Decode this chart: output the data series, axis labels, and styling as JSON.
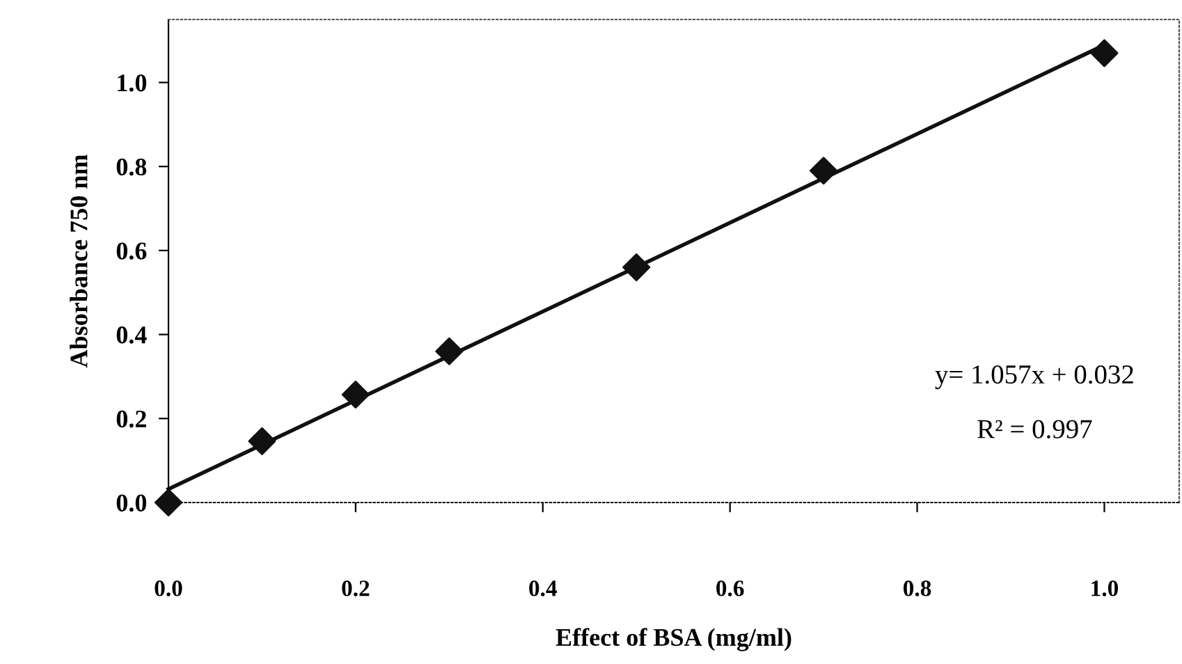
{
  "chart_data": {
    "type": "scatter",
    "xlabel": "Effect of BSA (mg/ml)",
    "ylabel": "Absorbance 750 nm",
    "xlim": [
      0,
      1.08
    ],
    "ylim": [
      0,
      1.15
    ],
    "xticks": [
      {
        "value": 0,
        "label": "0.0"
      },
      0.2,
      0.4,
      0.6,
      0.8,
      {
        "value": 1,
        "label": "1.0"
      }
    ],
    "yticks": [
      {
        "value": 0,
        "label": "0.0"
      },
      0.2,
      0.4,
      0.6,
      0.8,
      {
        "value": 1,
        "label": "1.0"
      }
    ],
    "grid": false,
    "legend": false,
    "series": [
      {
        "type": "line",
        "color": "#111111",
        "x": [
          0,
          1
        ],
        "values": [
          0.032,
          1.089
        ],
        "marker": "none",
        "line_style": "solid"
      },
      {
        "color": "#111111",
        "x": [
          0,
          0.1,
          0.2,
          0.3,
          0.5,
          0.7,
          1.0
        ],
        "values": [
          0,
          0.146,
          0.257,
          0.36,
          0.56,
          0.79,
          1.07
        ],
        "marker": "diamond"
      }
    ],
    "annotations": [
      "y= 1.057x + 0.032",
      "R² = 0.997"
    ]
  }
}
